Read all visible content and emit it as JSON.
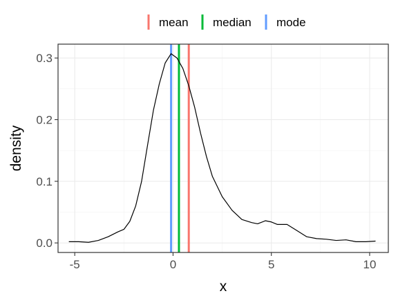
{
  "chart_data": {
    "type": "line",
    "title": "",
    "xlabel": "x",
    "ylabel": "density",
    "xlim": [
      -5.85,
      10.95
    ],
    "ylim": [
      -0.0155,
      0.3225
    ],
    "x_ticks": [
      -5,
      0,
      5,
      10
    ],
    "x_tick_labels": [
      "-5",
      "0",
      "5",
      "10"
    ],
    "y_ticks": [
      0.0,
      0.1,
      0.2,
      0.3
    ],
    "y_tick_labels": [
      "0.0",
      "0.1",
      "0.2",
      "0.3"
    ],
    "grid": true,
    "legend_position": "top",
    "series": [
      {
        "color": "#000000",
        "x": [
          -5.3,
          -4.8,
          -4.3,
          -3.8,
          -3.3,
          -2.8,
          -2.5,
          -2.2,
          -1.9,
          -1.6,
          -1.3,
          -1.0,
          -0.7,
          -0.4,
          -0.1,
          0.2,
          0.5,
          0.8,
          1.1,
          1.4,
          1.7,
          2.0,
          2.5,
          3.0,
          3.5,
          4.0,
          4.3,
          4.7,
          5.0,
          5.3,
          5.8,
          6.3,
          6.8,
          7.3,
          7.8,
          8.3,
          8.8,
          9.3,
          9.8,
          10.3
        ],
        "y": [
          0.002,
          0.002,
          0.001,
          0.004,
          0.01,
          0.018,
          0.022,
          0.035,
          0.06,
          0.1,
          0.158,
          0.215,
          0.258,
          0.292,
          0.307,
          0.3,
          0.283,
          0.255,
          0.22,
          0.178,
          0.14,
          0.108,
          0.075,
          0.053,
          0.038,
          0.033,
          0.031,
          0.036,
          0.034,
          0.03,
          0.03,
          0.02,
          0.01,
          0.007,
          0.006,
          0.004,
          0.005,
          0.002,
          0.002,
          0.003
        ]
      }
    ],
    "vlines": [
      {
        "name": "mean",
        "x": 0.8,
        "color": "#F8766D"
      },
      {
        "name": "median",
        "x": 0.3,
        "color": "#00BA38"
      },
      {
        "name": "mode",
        "x": -0.1,
        "color": "#619CFF"
      }
    ],
    "legend": [
      {
        "label": "mean",
        "color": "#F8766D"
      },
      {
        "label": "median",
        "color": "#00BA38"
      },
      {
        "label": "mode",
        "color": "#619CFF"
      }
    ]
  }
}
